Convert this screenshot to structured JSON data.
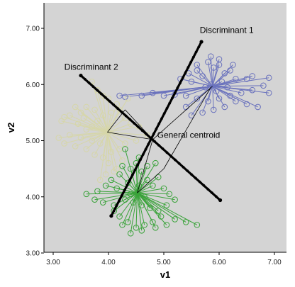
{
  "chart_data": {
    "type": "scatter",
    "xlabel": "v1",
    "ylabel": "v2",
    "xlim": [
      3.0,
      7.0
    ],
    "ylim": [
      3.0,
      7.0
    ],
    "xticks": [
      "3.00",
      "4.00",
      "5.00",
      "6.00",
      "7.00"
    ],
    "yticks": [
      "3.00",
      "4.00",
      "5.00",
      "6.00",
      "7.00"
    ],
    "grid": false,
    "colors": {
      "background": "#d4d4d4",
      "group1": "#6a72bd",
      "group2": "#3aa33a",
      "group3": "#d6d6a8",
      "axis_lines": "#000000"
    },
    "annotations": [
      {
        "text": "Discriminant 1",
        "x": 5.65,
        "y": 6.92
      },
      {
        "text": "Discriminant 2",
        "x": 3.2,
        "y": 6.26
      },
      {
        "text": "General centroid",
        "x": 4.88,
        "y": 5.05
      }
    ],
    "general_centroid": [
      4.8,
      5.02
    ],
    "discriminant_1": {
      "from": [
        4.05,
        3.66
      ],
      "to": [
        5.68,
        6.76
      ]
    },
    "discriminant_2": {
      "from": [
        3.5,
        6.16
      ],
      "to": [
        6.02,
        3.94
      ]
    },
    "series": [
      {
        "color": "#6a72bd",
        "centroid": [
          5.88,
          5.97
        ],
        "points": [
          [
            5.8,
            6.4
          ],
          [
            5.9,
            6.3
          ],
          [
            6.0,
            6.35
          ],
          [
            6.1,
            6.2
          ],
          [
            6.2,
            6.25
          ],
          [
            6.3,
            6.1
          ],
          [
            6.5,
            6.1
          ],
          [
            6.6,
            6.15
          ],
          [
            6.9,
            6.12
          ],
          [
            6.8,
            5.98
          ],
          [
            6.6,
            5.9
          ],
          [
            6.4,
            5.85
          ],
          [
            6.2,
            5.8
          ],
          [
            6.0,
            5.75
          ],
          [
            5.8,
            5.7
          ],
          [
            5.6,
            5.75
          ],
          [
            5.4,
            5.8
          ],
          [
            5.2,
            5.82
          ],
          [
            5.0,
            5.8
          ],
          [
            4.8,
            5.85
          ],
          [
            4.6,
            5.8
          ],
          [
            4.3,
            5.78
          ],
          [
            4.2,
            5.8
          ],
          [
            5.5,
            6.05
          ],
          [
            5.3,
            6.1
          ],
          [
            5.7,
            6.15
          ],
          [
            6.05,
            6.05
          ],
          [
            6.15,
            5.95
          ],
          [
            5.95,
            5.88
          ],
          [
            5.85,
            6.0
          ],
          [
            5.75,
            5.95
          ],
          [
            6.3,
            5.7
          ],
          [
            6.5,
            5.65
          ],
          [
            6.1,
            5.6
          ],
          [
            5.9,
            5.55
          ],
          [
            5.7,
            5.5
          ],
          [
            5.5,
            5.45
          ],
          [
            5.4,
            5.6
          ],
          [
            6.7,
            5.6
          ],
          [
            6.9,
            5.85
          ],
          [
            5.6,
            6.25
          ],
          [
            5.45,
            6.2
          ],
          [
            6.25,
            6.35
          ],
          [
            6.0,
            6.45
          ],
          [
            5.85,
            6.5
          ],
          [
            5.6,
            6.35
          ]
        ]
      },
      {
        "color": "#d6d6a8",
        "centroid": [
          3.98,
          5.15
        ],
        "points": [
          [
            3.7,
            6.05
          ],
          [
            3.8,
            5.9
          ],
          [
            3.9,
            5.8
          ],
          [
            4.0,
            5.75
          ],
          [
            3.6,
            5.6
          ],
          [
            3.5,
            5.5
          ],
          [
            3.3,
            5.45
          ],
          [
            3.15,
            5.35
          ],
          [
            3.2,
            5.42
          ],
          [
            3.45,
            5.3
          ],
          [
            3.6,
            5.2
          ],
          [
            3.7,
            5.25
          ],
          [
            3.8,
            5.35
          ],
          [
            3.9,
            5.45
          ],
          [
            4.05,
            5.5
          ],
          [
            4.2,
            5.55
          ],
          [
            4.3,
            5.4
          ],
          [
            4.4,
            5.3
          ],
          [
            4.55,
            5.25
          ],
          [
            4.7,
            5.1
          ],
          [
            4.5,
            5.0
          ],
          [
            4.3,
            4.95
          ],
          [
            4.2,
            4.85
          ],
          [
            4.05,
            4.8
          ],
          [
            3.9,
            4.7
          ],
          [
            3.75,
            4.75
          ],
          [
            3.6,
            4.85
          ],
          [
            3.4,
            4.9
          ],
          [
            3.2,
            4.95
          ],
          [
            3.1,
            5.05
          ],
          [
            3.3,
            5.1
          ],
          [
            3.5,
            5.05
          ],
          [
            3.7,
            5.0
          ],
          [
            3.85,
            4.95
          ],
          [
            4.0,
            4.6
          ],
          [
            4.15,
            4.5
          ],
          [
            3.95,
            4.4
          ],
          [
            3.85,
            4.3
          ],
          [
            4.1,
            4.45
          ],
          [
            4.25,
            4.65
          ],
          [
            3.55,
            5.4
          ],
          [
            3.4,
            5.6
          ],
          [
            3.75,
            5.55
          ],
          [
            4.15,
            5.65
          ],
          [
            4.35,
            5.75
          ]
        ]
      },
      {
        "color": "#3aa33a",
        "centroid": [
          4.52,
          4.07
        ],
        "points": [
          [
            4.3,
            4.85
          ],
          [
            4.55,
            4.7
          ],
          [
            4.7,
            4.55
          ],
          [
            4.85,
            4.6
          ],
          [
            4.6,
            4.45
          ],
          [
            4.4,
            4.5
          ],
          [
            4.2,
            4.4
          ],
          [
            4.05,
            4.3
          ],
          [
            3.95,
            4.2
          ],
          [
            3.8,
            4.1
          ],
          [
            3.6,
            4.05
          ],
          [
            3.75,
            3.95
          ],
          [
            3.9,
            3.9
          ],
          [
            4.1,
            3.85
          ],
          [
            4.3,
            3.95
          ],
          [
            4.45,
            3.9
          ],
          [
            4.6,
            3.85
          ],
          [
            4.75,
            3.8
          ],
          [
            4.9,
            3.75
          ],
          [
            5.05,
            3.85
          ],
          [
            5.2,
            3.95
          ],
          [
            5.1,
            4.05
          ],
          [
            5.0,
            4.15
          ],
          [
            4.95,
            3.65
          ],
          [
            4.8,
            3.55
          ],
          [
            4.65,
            3.5
          ],
          [
            4.5,
            3.45
          ],
          [
            4.35,
            3.55
          ],
          [
            4.2,
            3.65
          ],
          [
            4.1,
            3.75
          ],
          [
            4.25,
            3.5
          ],
          [
            4.4,
            3.35
          ],
          [
            4.6,
            3.4
          ],
          [
            4.85,
            3.45
          ],
          [
            5.05,
            3.5
          ],
          [
            5.2,
            3.6
          ],
          [
            5.4,
            3.55
          ],
          [
            5.6,
            3.5
          ],
          [
            4.7,
            4.3
          ],
          [
            4.35,
            4.25
          ],
          [
            4.15,
            4.15
          ],
          [
            4.8,
            4.2
          ],
          [
            4.55,
            4.2
          ],
          [
            4.4,
            4.05
          ],
          [
            4.65,
            4.0
          ],
          [
            4.9,
            4.35
          ],
          [
            4.5,
            4.6
          ],
          [
            4.25,
            4.55
          ]
        ]
      }
    ]
  }
}
